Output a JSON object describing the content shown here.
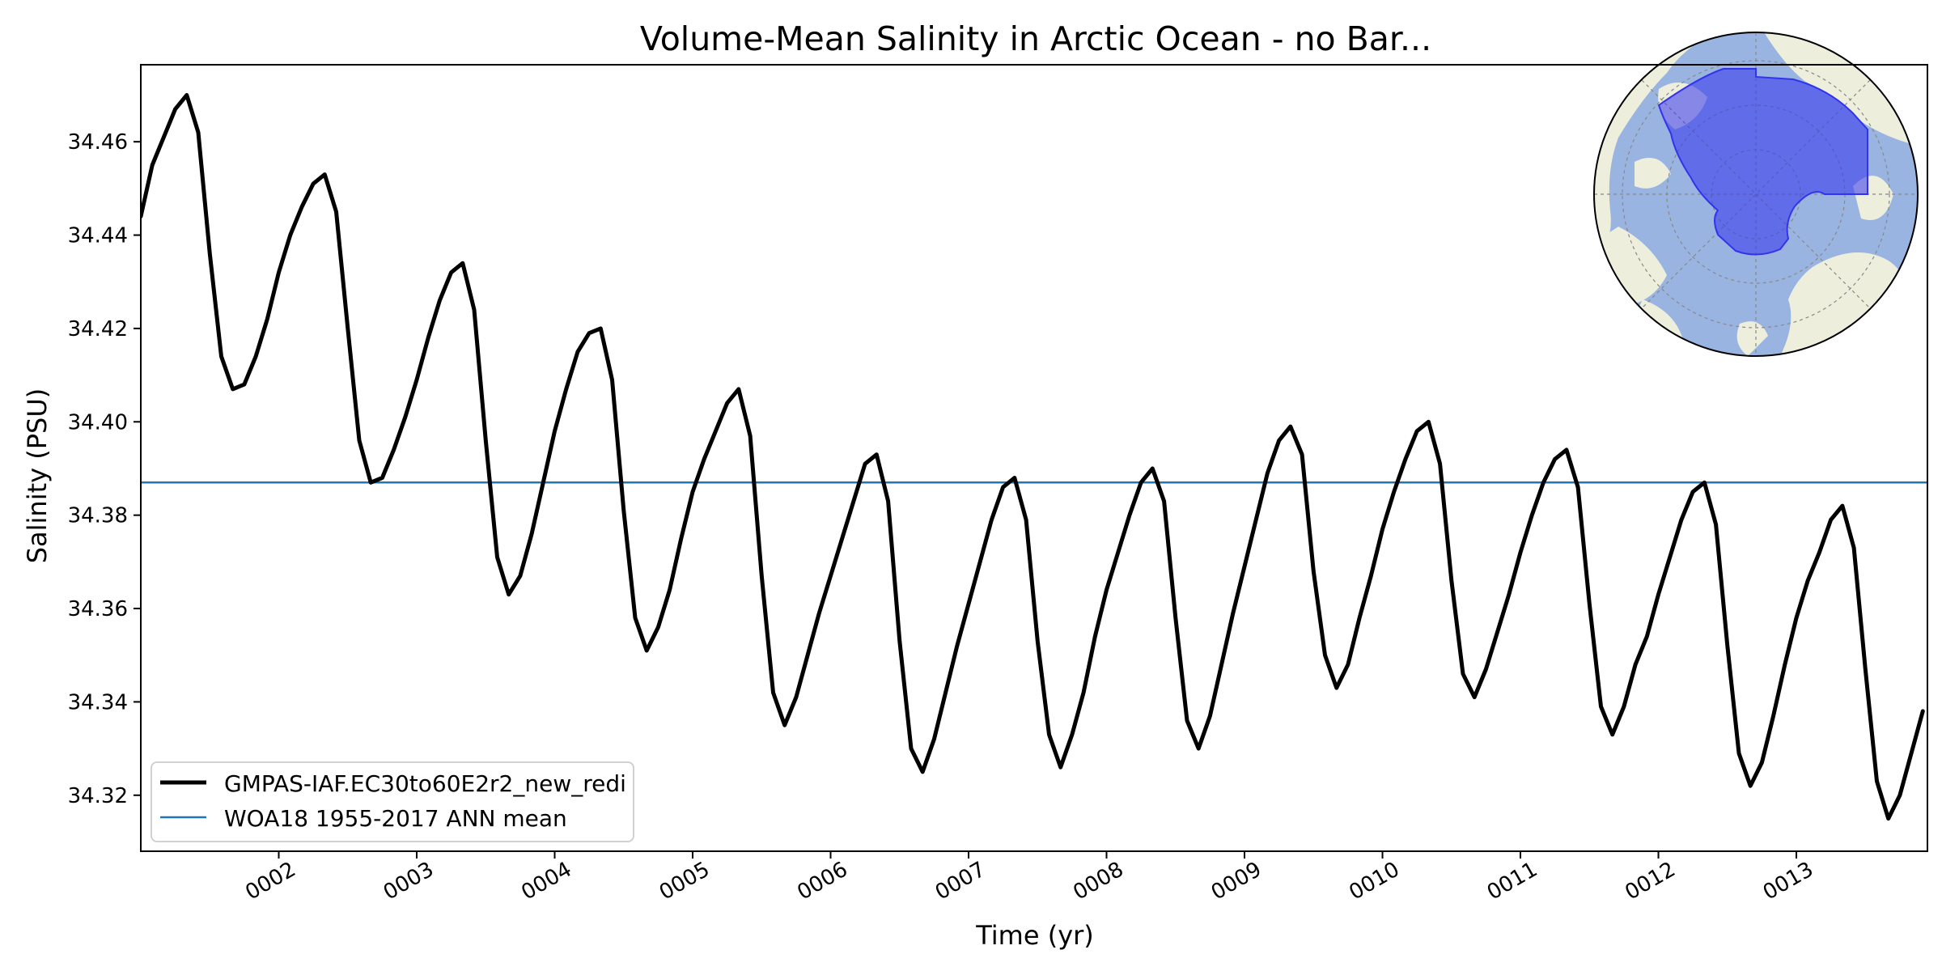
{
  "chart_data": {
    "type": "line",
    "title": "Volume-Mean Salinity in Arctic Ocean - no Bar...",
    "xlabel": "Time (yr)",
    "ylabel": "Salinity (PSU)",
    "xlim": [
      1.0,
      13.95
    ],
    "ylim": [
      34.308,
      34.4765
    ],
    "x_ticks": [
      2,
      3,
      4,
      5,
      6,
      7,
      8,
      9,
      10,
      11,
      12,
      13
    ],
    "x_tick_labels": [
      "0002",
      "0003",
      "0004",
      "0005",
      "0006",
      "0007",
      "0008",
      "0009",
      "0010",
      "0011",
      "0012",
      "0013"
    ],
    "y_ticks": [
      34.32,
      34.34,
      34.36,
      34.38,
      34.4,
      34.42,
      34.44,
      34.46
    ],
    "y_tick_labels": [
      "34.32",
      "34.34",
      "34.36",
      "34.38",
      "34.40",
      "34.42",
      "34.44",
      "34.46"
    ],
    "grid": false,
    "legend_position": "lower-left",
    "series": [
      {
        "name": "GMPAS-IAF.EC30to60E2r2_new_redi",
        "color": "#000000",
        "style": "thick-solid",
        "monthly_values_from_0001_01": [
          34.444,
          34.455,
          34.461,
          34.467,
          34.47,
          34.462,
          34.436,
          34.414,
          34.407,
          34.408,
          34.414,
          34.422,
          34.432,
          34.44,
          34.446,
          34.451,
          34.453,
          34.445,
          34.42,
          34.396,
          34.387,
          34.388,
          34.394,
          34.401,
          34.409,
          34.418,
          34.426,
          34.432,
          34.434,
          34.424,
          34.396,
          34.371,
          34.363,
          34.367,
          34.376,
          34.387,
          34.398,
          34.407,
          34.415,
          34.419,
          34.42,
          34.409,
          34.381,
          34.358,
          34.351,
          34.356,
          34.364,
          34.375,
          34.385,
          34.392,
          34.398,
          34.404,
          34.407,
          34.397,
          34.367,
          34.342,
          34.335,
          34.341,
          34.35,
          34.359,
          34.367,
          34.375,
          34.383,
          34.391,
          34.393,
          34.383,
          34.353,
          34.33,
          34.325,
          34.332,
          34.342,
          34.352,
          34.361,
          34.37,
          34.379,
          34.386,
          34.388,
          34.379,
          34.353,
          34.333,
          34.326,
          34.333,
          34.342,
          34.354,
          34.364,
          34.372,
          34.38,
          34.387,
          34.39,
          34.383,
          34.358,
          34.336,
          34.33,
          34.337,
          34.348,
          34.359,
          34.369,
          34.379,
          34.389,
          34.396,
          34.399,
          34.393,
          34.368,
          34.35,
          34.343,
          34.348,
          34.358,
          34.367,
          34.377,
          34.385,
          34.392,
          34.398,
          34.4,
          34.391,
          34.366,
          34.346,
          34.341,
          34.347,
          34.355,
          34.363,
          34.372,
          34.38,
          34.387,
          34.392,
          34.394,
          34.386,
          34.361,
          34.339,
          34.333,
          34.339,
          34.348,
          34.354,
          34.363,
          34.371,
          34.379,
          34.385,
          34.387,
          34.378,
          34.352,
          34.329,
          34.322,
          34.327,
          34.337,
          34.348,
          34.358,
          34.366,
          34.372,
          34.379,
          34.382,
          34.373,
          34.347,
          34.323,
          34.315,
          34.32,
          34.329,
          34.338
        ]
      },
      {
        "name": "WOA18 1955-2017 ANN mean",
        "color": "#1f77b4",
        "style": "thin-solid",
        "constant_value": 34.387
      }
    ]
  },
  "inset_map": {
    "label": "polar-stereographic-arctic-region-map",
    "land_color": "#eeeedd",
    "ocean_color": "#99b4e0",
    "region_color": "#3333ee"
  }
}
